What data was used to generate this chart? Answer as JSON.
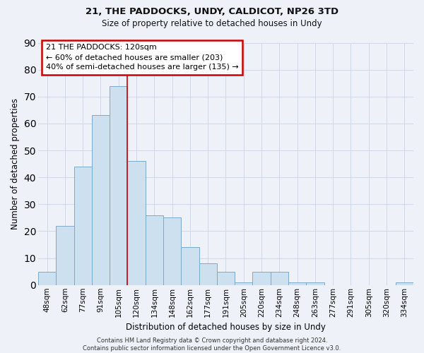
{
  "title": "21, THE PADDOCKS, UNDY, CALDICOT, NP26 3TD",
  "subtitle": "Size of property relative to detached houses in Undy",
  "xlabel": "Distribution of detached houses by size in Undy",
  "ylabel": "Number of detached properties",
  "bar_labels": [
    "48sqm",
    "62sqm",
    "77sqm",
    "91sqm",
    "105sqm",
    "120sqm",
    "134sqm",
    "148sqm",
    "162sqm",
    "177sqm",
    "191sqm",
    "205sqm",
    "220sqm",
    "234sqm",
    "248sqm",
    "263sqm",
    "277sqm",
    "291sqm",
    "305sqm",
    "320sqm",
    "334sqm"
  ],
  "bar_values": [
    5,
    22,
    44,
    63,
    74,
    46,
    26,
    25,
    14,
    8,
    5,
    1,
    5,
    5,
    1,
    1,
    0,
    0,
    0,
    0,
    1
  ],
  "bar_color": "#cce0f0",
  "bar_edgecolor": "#7aaac8",
  "vline_index": 5,
  "annotation_lines": [
    "21 THE PADDOCKS: 120sqm",
    "← 60% of detached houses are smaller (203)",
    "40% of semi-detached houses are larger (135) →"
  ],
  "annotation_box_facecolor": "#ffffff",
  "annotation_box_edgecolor": "#cc0000",
  "vline_color": "#cc0000",
  "ylim": [
    0,
    90
  ],
  "yticks": [
    0,
    10,
    20,
    30,
    40,
    50,
    60,
    70,
    80,
    90
  ],
  "footer_lines": [
    "Contains HM Land Registry data © Crown copyright and database right 2024.",
    "Contains public sector information licensed under the Open Government Licence v3.0."
  ],
  "grid_color": "#ccd8ec",
  "bg_color": "#eef2f8",
  "title_fontsize": 9.5,
  "subtitle_fontsize": 8.5,
  "axis_label_fontsize": 8.5,
  "tick_fontsize": 7.5,
  "annotation_fontsize": 8.0,
  "footer_fontsize": 6.0
}
